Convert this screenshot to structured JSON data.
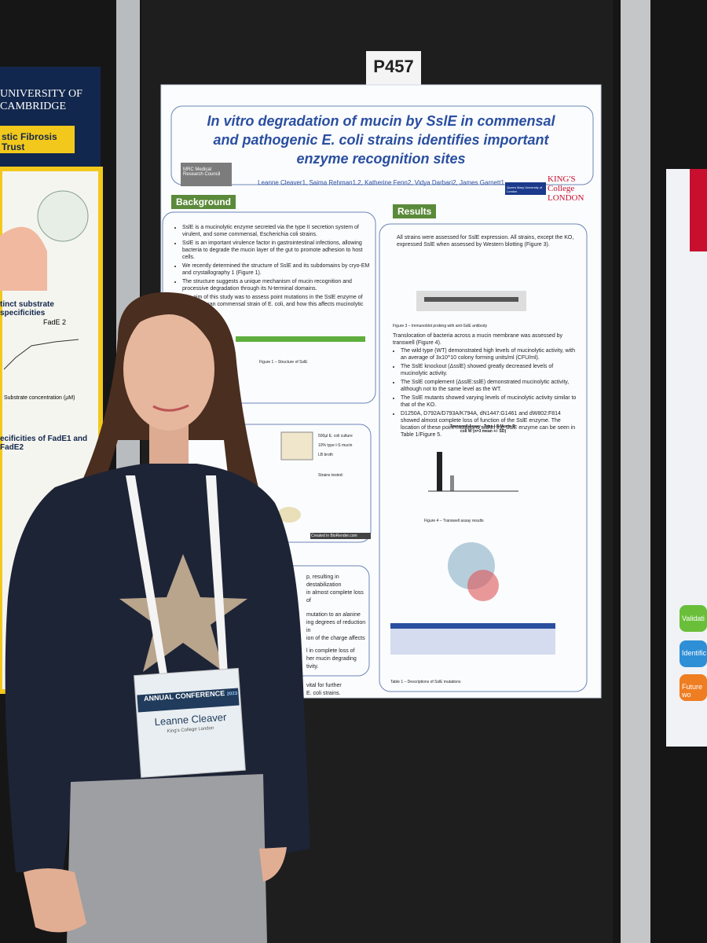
{
  "board_number": "P457",
  "poster": {
    "title": "In vitro degradation of mucin by SslE in commensal and pathogenic E. coli strains identifies important enzyme recognition sites",
    "authors": "Leanne Cleaver1, Saima Rehman1,2, Katherine Fenn2, Vidya Darbari2, James Garnett1",
    "logo_left": "MRC Medical Research Council",
    "logo_qm": "Queen Mary University of London",
    "logo_kings": "KING'S College LONDON",
    "background": {
      "heading": "Background",
      "bullets": [
        "SslE is a mucinolytic enzyme secreted via the type II secretion system of virulent, and some commensal, Escherichia coli strains.",
        "SslE is an important virulence factor in gastrointestinal infections, allowing bacteria to degrade the mucin layer of the gut to promote adhesion to host cells.",
        "We recently determined the structure of SslE and its subdomains by cryo-EM and crystallography 1 (Figure 1).",
        "The structure suggests a unique mechanism of mucin recognition and processive degradation through its N-terminal domains.",
        "The aim of this study was to assess point mutations in the SslE enzyme of the Waksman commensal strain of E. coli, and how this affects mucinolytic activity."
      ],
      "figure1_caption": "Figure 1 – Structure of SslE"
    },
    "methods": {
      "labels": [
        "500µl E. coli culture",
        "10% type I-S mucin",
        "LB broth",
        "Strains tested:",
        "Created in BioRender.com"
      ]
    },
    "conclusion_fragments": [
      "p, resulting in destabilization",
      "in almost complete loss of",
      "mutation to an alanine",
      "ing degrees of reduction in",
      "ion of the charge affects",
      "l in complete loss of",
      "her mucin degrading",
      "tivity.",
      "vital for further",
      "E. coli strains."
    ],
    "results": {
      "heading": "Results",
      "intro": "All strains were assessed for SslE expression. All strains, except the KO, expressed SslE when assessed by Western blotting (Figure 3).",
      "figure3_caption": "Figure 3 – Immunoblot probing with anti-SslE antibody",
      "transwell": "Translocation of bacteria across a mucin membrane was assessed by transwell (Figure 4).",
      "bullets": [
        "The wild type (WT) demonstrated high levels of mucinolytic activity, with an average of 3x10^10 colony forming units/ml (CFU/ml).",
        "The SslE knockout (ΔsslE) showed greatly decreased levels of mucinolytic activity.",
        "The SslE complement (ΔsslE:sslE) demonstrated mucinolytic activity, although not to the same level as the WT.",
        "The SslE mutants showed varying levels of mucinolytic activity similar to that of the KO.",
        "D1250A, D792A/D793A/K794A, dN1447:G1461 and dW802:F814 showed almost complete loss of function of the SslE enzyme. The location of these point mutations within the SslE enzyme can be seen in Table 1/Figure 5."
      ],
      "chart_title": "Transwell Assay - Type I-S Mucin E. coli W (n=3 mean +/- SD)",
      "figure4_caption": "Figure 4 – Transwell assay results",
      "table1_caption": "Table 1 – Descriptions of SslE mutations"
    }
  },
  "badge": {
    "event": "ANNUAL CONFERENCE",
    "year": "2023",
    "name": "Leanne Cleaver",
    "affiliation": "King's College London"
  },
  "left_poster": {
    "university": "UNIVERSITY OF CAMBRIDGE",
    "trust": "stic Fibrosis Trust",
    "section1": "tinct substrate specificities",
    "chart_label": "FadE 2",
    "axis_label": "Substrate concentration (µM)",
    "section2": "ecificities of FadE1 and FadE2"
  },
  "right_poster": {
    "buttons": [
      "Validati",
      "Identific",
      "Future wo"
    ]
  }
}
